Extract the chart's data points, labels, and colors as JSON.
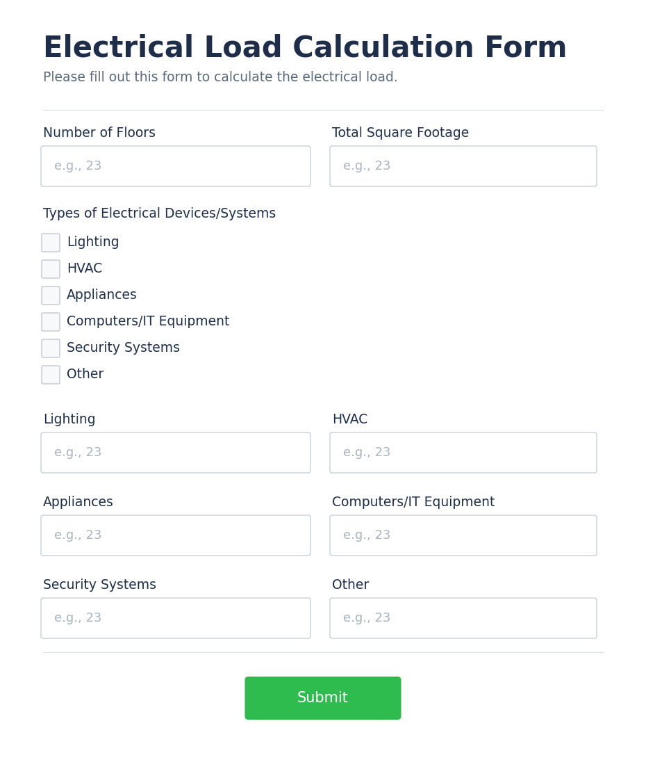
{
  "title": "Electrical Load Calculation Form",
  "subtitle": "Please fill out this form to calculate the electrical load.",
  "title_color": "#1e2d4a",
  "subtitle_color": "#5a6a7e",
  "background_color": "#f9f9f9",
  "form_bg": "#ffffff",
  "divider_color": "#d8dde6",
  "field_border_color": "#c8d0da",
  "field_bg_color": "#ffffff",
  "placeholder_color": "#a8b4c0",
  "label_color": "#1e2d4a",
  "checkbox_border_color": "#c0c8d4",
  "checkbox_bg_color": "#f8f9fb",
  "submit_bg_color": "#2ebc4f",
  "submit_text_color": "#ffffff",
  "row1_labels": [
    "Number of Floors",
    "Total Square Footage"
  ],
  "checkbox_items": [
    "Lighting",
    "HVAC",
    "Appliances",
    "Computers/IT Equipment",
    "Security Systems",
    "Other"
  ],
  "section_label": "Types of Electrical Devices/Systems",
  "row2_labels": [
    "Lighting",
    "HVAC"
  ],
  "row3_labels": [
    "Appliances",
    "Computers/IT Equipment"
  ],
  "row4_labels": [
    "Security Systems",
    "Other"
  ],
  "placeholder": "e.g., 23",
  "submit_label": "Submit",
  "fig_w": 9.3,
  "fig_h": 11.16,
  "dpi": 100
}
